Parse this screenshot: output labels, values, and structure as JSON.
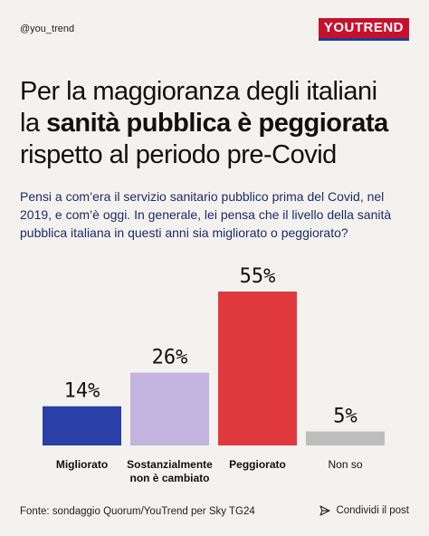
{
  "header": {
    "handle": "@you_trend",
    "logo_you": "YOU",
    "logo_trend": "TREND"
  },
  "title": {
    "line1": "Per la maggioranza degli italiani",
    "line2_prefix": "la ",
    "line2_bold": "sanità pubblica è peggiorata",
    "line3": "rispetto al periodo pre-Covid"
  },
  "question": "Pensi a com’era il servizio sanitario pubblico prima del Covid, nel 2019, e com’è oggi. In generale, lei pensa che il livello della sanità pubblica italiana in questi anni sia migliorato o peggiorato?",
  "chart_data": {
    "type": "bar",
    "categories": [
      "Migliorato",
      "Sostanzialmente non è cambiato",
      "Peggiorato",
      "Non so"
    ],
    "category_lines": [
      [
        "Migliorato"
      ],
      [
        "Sostanzialmente",
        "non è cambiato"
      ],
      [
        "Peggiorato"
      ],
      [
        "Non so"
      ]
    ],
    "values": [
      14,
      26,
      55,
      5
    ],
    "value_labels": [
      "14%",
      "26%",
      "55%",
      "5%"
    ],
    "colors": [
      "#2a3fa8",
      "#c3b3df",
      "#e0393d",
      "#bdbdbd"
    ],
    "label_weights": [
      "bold",
      "bold",
      "bold",
      "normal"
    ],
    "title": "",
    "xlabel": "",
    "ylabel": "",
    "ylim": [
      0,
      55
    ],
    "grid": false,
    "legend": "none"
  },
  "footer": {
    "source": "Fonte: sondaggio Quorum/YouTrend per Sky TG24",
    "share_label": "Condividi il post"
  },
  "colors": {
    "background": "#f4f2ee",
    "brand_red": "#c8102e",
    "brand_blue": "#1b3d93",
    "question_text": "#1d2b6b"
  },
  "icons": {
    "share": "send-icon"
  }
}
